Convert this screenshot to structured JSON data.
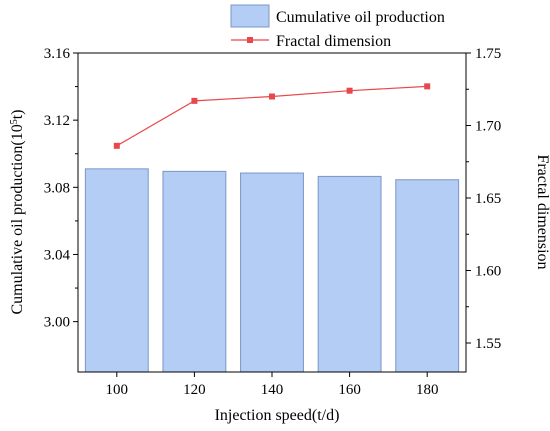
{
  "chart_data": {
    "type": "bar",
    "categories": [
      "100",
      "120",
      "140",
      "160",
      "180"
    ],
    "xlabel": "Injection speed(t/d)",
    "ylabel_left": {
      "main": "Cumulative oil production(10",
      "sup": "5",
      "tail": "t)"
    },
    "ylabel_right": "Fractal dimension",
    "ylim_left": [
      2.97,
      3.16
    ],
    "yticks_left": [
      "3.00",
      "3.04",
      "3.08",
      "3.12",
      "3.16"
    ],
    "ylim_right": [
      1.53,
      1.75
    ],
    "yticks_right": [
      "1.55",
      "1.60",
      "1.65",
      "1.70",
      "1.75"
    ],
    "series": [
      {
        "name": "Cumulative oil production",
        "kind": "bar",
        "axis": "left",
        "values": [
          3.091,
          3.0895,
          3.0885,
          3.0865,
          3.0845
        ],
        "color": "#b3cdf5",
        "edge": "#7b95c9"
      },
      {
        "name": "Fractal dimension",
        "kind": "line",
        "axis": "right",
        "values": [
          1.686,
          1.717,
          1.72,
          1.724,
          1.727
        ],
        "color": "#e8484b"
      }
    ],
    "legend_position": "top"
  }
}
